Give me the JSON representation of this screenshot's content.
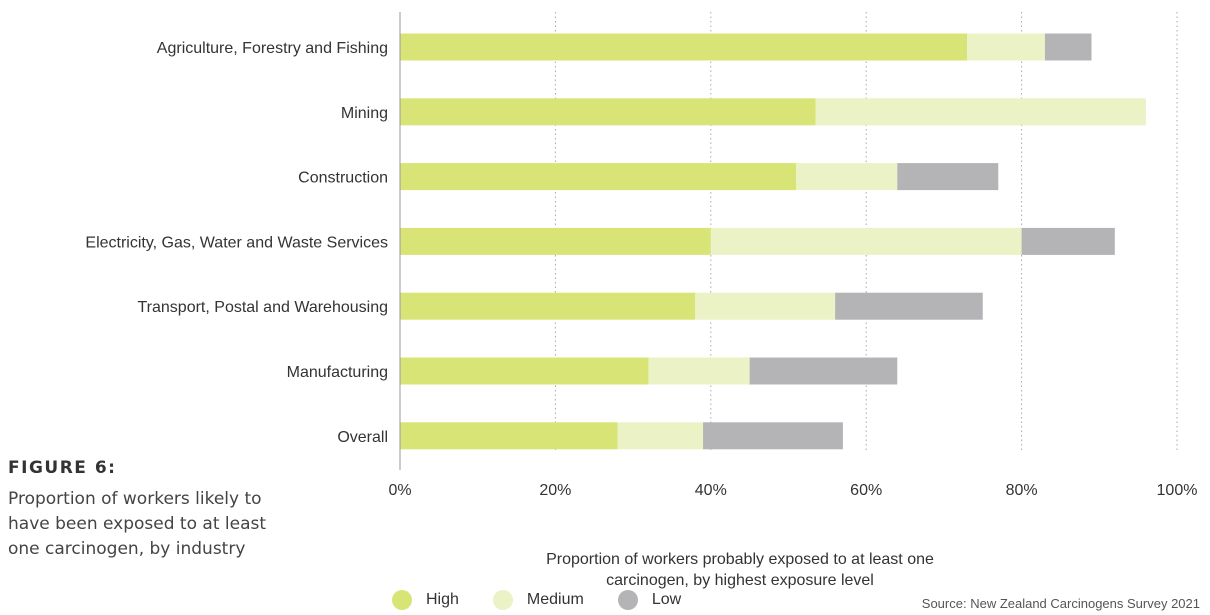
{
  "figure": {
    "label": "FIGURE 6:",
    "caption": "Proportion of workers likely to have been exposed to at least one carcinogen, by industry"
  },
  "source": "Source: New Zealand Carcinogens Survey 2021",
  "colors": {
    "high": "#d9e476",
    "medium": "#ebf2c5",
    "low": "#b4b4b6",
    "axis": "#999999",
    "grid": "#aaaaaa"
  },
  "chart_data": {
    "type": "bar",
    "orientation": "horizontal",
    "stacked": true,
    "categories": [
      "Agriculture, Forestry and Fishing",
      "Mining",
      "Construction",
      "Electricity, Gas, Water and Waste Services",
      "Transport, Postal and Warehousing",
      "Manufacturing",
      "Overall"
    ],
    "series": [
      {
        "name": "High",
        "values": [
          73,
          53.5,
          51,
          40,
          38,
          32,
          28
        ]
      },
      {
        "name": "Medium",
        "values": [
          10,
          42.5,
          13,
          40,
          18,
          13,
          11
        ]
      },
      {
        "name": "Low",
        "values": [
          6,
          0,
          13,
          12,
          19,
          19,
          18
        ]
      }
    ],
    "xlabel": "Proportion of workers probably exposed to at least one carcinogen, by highest exposure level",
    "xlim": [
      0,
      100
    ],
    "xticks": [
      0,
      20,
      40,
      60,
      80,
      100
    ],
    "xtick_labels": [
      "0%",
      "20%",
      "40%",
      "60%",
      "80%",
      "100%"
    ],
    "grid": "vertical-dotted",
    "legend": "bottom"
  }
}
